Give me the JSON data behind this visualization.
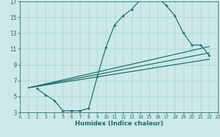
{
  "xlabel": "Humidex (Indice chaleur)",
  "bg_color": "#cce8e8",
  "line_color": "#1a6b6b",
  "grid_color": "#aad8d8",
  "xlim": [
    0,
    23
  ],
  "ylim": [
    3,
    17
  ],
  "xticks": [
    0,
    1,
    2,
    3,
    4,
    5,
    6,
    7,
    8,
    9,
    10,
    11,
    12,
    13,
    14,
    15,
    16,
    17,
    18,
    19,
    20,
    21,
    22,
    23
  ],
  "yticks": [
    3,
    5,
    7,
    9,
    11,
    13,
    15,
    17
  ],
  "main_x": [
    2,
    3,
    4,
    5,
    6,
    7,
    8,
    9,
    10,
    11,
    12,
    13,
    14,
    15,
    16,
    17,
    18,
    19,
    20,
    21,
    22
  ],
  "main_y": [
    6,
    5.2,
    4.5,
    3.2,
    3.2,
    3.2,
    3.5,
    7.5,
    11.2,
    14.0,
    15.2,
    16.0,
    17.2,
    17.5,
    17.5,
    16.5,
    15.2,
    13.0,
    11.5,
    11.5,
    10.2
  ],
  "line1_x": [
    1,
    22
  ],
  "line1_y": [
    6.1,
    10.5
  ],
  "line2_x": [
    1,
    22
  ],
  "line2_y": [
    6.1,
    11.3
  ],
  "line3_x": [
    1,
    22
  ],
  "line3_y": [
    6.1,
    9.7
  ]
}
